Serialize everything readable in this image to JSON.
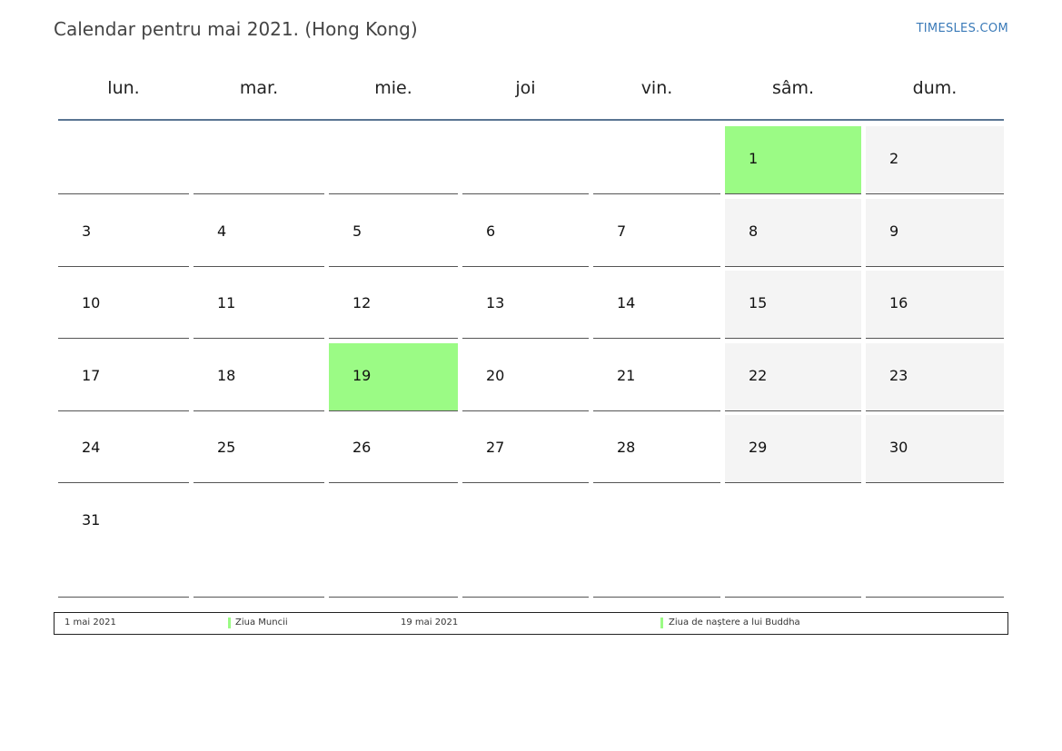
{
  "header": {
    "title": "Calendar pentru mai 2021. (Hong Kong)",
    "site": "TIMESLES.COM"
  },
  "weekdays": [
    "lun.",
    "mar.",
    "mie.",
    "joi",
    "vin.",
    "sâm.",
    "dum."
  ],
  "weeks": [
    [
      "",
      "",
      "",
      "",
      "",
      "1",
      "2"
    ],
    [
      "3",
      "4",
      "5",
      "6",
      "7",
      "8",
      "9"
    ],
    [
      "10",
      "11",
      "12",
      "13",
      "14",
      "15",
      "16"
    ],
    [
      "17",
      "18",
      "19",
      "20",
      "21",
      "22",
      "23"
    ],
    [
      "24",
      "25",
      "26",
      "27",
      "28",
      "29",
      "30"
    ],
    [
      "31",
      "",
      "",
      "",
      "",
      "",
      ""
    ]
  ],
  "holidays": [
    {
      "date": "1 mai 2021",
      "name": "Ziua Muncii",
      "day": "1"
    },
    {
      "date": "19 mai 2021",
      "name": "Ziua de naștere a lui Buddha",
      "day": "19"
    }
  ],
  "colors": {
    "holiday": "#9bfb85",
    "weekend": "#f4f4f4",
    "header_rule": "#5a7593",
    "site_link": "#3a7ab8"
  }
}
